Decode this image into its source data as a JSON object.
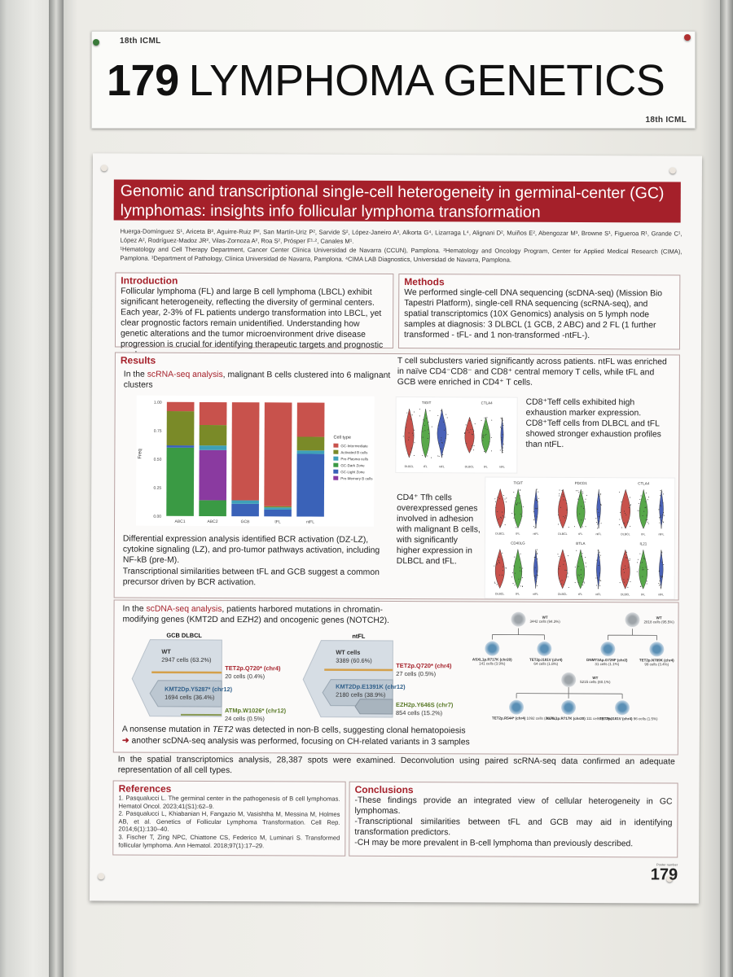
{
  "placard": {
    "brand_top": "18th ICML",
    "number": "179",
    "title": "LYMPHOMA GENETICS",
    "brand_bottom": "18th ICML"
  },
  "poster": {
    "title": "Genomic and transcriptional single-cell heterogeneity in germinal-center (GC) lymphomas: insights info follicular lymphoma transformation",
    "authors": "Huerga-Domínguez S¹, Ariceta B², Aguirre-Ruiz P², San Martín-Uriz P², Sarvide S², López-Janeiro A³, Alkorta G⁴, Lizarraga L⁴, Alignani D², Muiños E², Abengozar M³, Browne S¹, Figueroa R¹, Grande C¹, López A², Rodríguez-Madoz JR², Vilas-Zornoza A², Roa S², Prósper F¹·², Canales M¹.",
    "affiliations": "¹Hematology and Cell Therapy Department, Cancer Center Clínica Universidad de Navarra (CCUN), Pamplona. ²Hematology and Oncology Program, Center for Applied Medical Research (CIMA), Pamplona. ³Department of Pathology, Clínica Universidad de Navarra, Pamplona. ⁴CIMA LAB Diagnostics, Universidad de Navarra, Pamplona.",
    "introduction": {
      "heading": "Introduction",
      "text": "Follicular lymphoma (FL) and large B cell lymphoma (LBCL) exhibit significant heterogeneity, reflecting the diversity of germinal centers. Each year, 2-3% of FL patients undergo transformation into LBCL, yet clear prognostic factors remain unidentified. Understanding how genetic alterations and the tumor microenvironment drive disease progression is crucial for identifying therapeutic targets and prognostic markers."
    },
    "methods": {
      "heading": "Methods",
      "text": "We performed single-cell DNA sequencing (scDNA-seq) (Mission Bio Tapestri Platform), single-cell RNA sequencing (scRNA-seq), and spatial transcriptomics (10X Genomics) analysis on 5 lymph node samples at diagnosis: 3 DLBCL (1 GCB, 2 ABC) and 2 FL (1 further transformed - tFL- and 1 non-transformed -ntFL-)."
    },
    "results": {
      "heading": "Results",
      "scrna_pre": "In the ",
      "scrna_link": "scRNA-seq analysis",
      "scrna_post": ", malignant B cells clustered into 6 malignant clusters",
      "tcell_text": "T cell subclusters varied significantly across patients. ntFL was enriched in naïve CD4⁻CD8⁻ and CD8⁺ central memory T cells, while tFL and GCB were enriched in CD4⁺ T cells.",
      "cd8_text": "CD8⁺Teff cells exhibited high exhaustion marker expression. CD8⁺Teff cells from DLBCL and tFL showed stronger exhaustion profiles than ntFL.",
      "cd4_text": "CD4⁺ Tfh cells overexpressed genes involved in adhesion with malignant B cells, with significantly higher expression in DLBCL and tFL.",
      "de_text": "Differential expression analysis identified BCR activation (DZ-LZ), cytokine signaling (LZ), and pro-tumor pathways activation, including NF-kB (pre-M).",
      "sim_text": "Transcriptional similarities between tFL and GCB suggest a common precursor driven by BCR activation.",
      "violin_top_genes": [
        "TIGIT",
        "CTLA4"
      ],
      "violin_grid_genes": [
        "TIGIT",
        "PDCD1",
        "CTLA4",
        "CD40LG",
        "BTLA",
        "IL21"
      ],
      "violin_groups": [
        "DLBCL",
        "tFL",
        "ntFL"
      ],
      "violin_ylabel": "Expression Level",
      "scdna_pre": "In the ",
      "scdna_link": "scDNA-seq analysis",
      "scdna_post": ", patients harbored mutations in chromatin-modifying genes (KMT2D and EZH2) and oncogenic genes (NOTCH2).",
      "gcb_label": "GCB DLBCL",
      "gcb_wt": "WT",
      "gcb_wt_cells": "2947 cells (63.2%)",
      "gcb_tet2": "TET2p.Q720* (chr4)",
      "gcb_tet2_cells": "20 cells (0.4%)",
      "gcb_kmt2d": "KMT2Dp.Y5287* (chr12)",
      "gcb_kmt2d_cells": "1694 cells (36.4%)",
      "gcb_atm": "ATMp.W1026* (chr12)",
      "gcb_atm_cells": "24 cells (0.5%)",
      "ntfl_label": "ntFL",
      "ntfl_wt": "WT cells",
      "ntfl_wt_cells": "3389 (60.6%)",
      "ntfl_tet2": "TET2p.Q720* (chr4)",
      "ntfl_tet2_cells": "27 cells (0.5%)",
      "ntfl_kmt2d": "KMT2Dp.E1391K (chr12)",
      "ntfl_kmt2d_cells": "2180 cells (38.9%)",
      "ntfl_ezh2": "EZH2p.Y646S (chr7)",
      "ntfl_ezh2_cells": "854 cells (15.2%)",
      "tree": {
        "wt1": "WT",
        "wt1_cells": "3442 cells (94.3%)",
        "wt2": "WT",
        "wt2_cells": "2818 cells (95.5%)",
        "wt3": "WT",
        "wt3_cells": "5215 cells (80.1%)",
        "a1": "ASXL1p.R717K (chr20)",
        "a1_cells": "141 cells (3.9%)",
        "a2": "TET2p.I181V (chr4)",
        "a2_cells": "64 cells (1.8%)",
        "b1": "DNMT3Ap.G726F (chr2)",
        "b1_cells": "31 cells (1.1%)",
        "b2": "TET2p.N789K (chr4)",
        "b2_cells": "99 cells (3.4%)",
        "c1": "TET2p.R544* (chr4)",
        "c1_cells": "1092 cells (16.7%)",
        "c2": "ASXL1p.R717K (chr20)",
        "c2_cells": "111 cells (1.7%)",
        "c3": "TET2p.I181V (chr4)",
        "c3_cells": "96 cells (1.5%)"
      },
      "nonsense_pre": "A nonsense mutation in ",
      "nonsense_gene": "TET2",
      "nonsense_post": " was detected in non-B cells, suggesting clonal hematopoiesis",
      "ch_text": "another scDNA-seq analysis was performed, focusing on CH-related variants in 3 samples",
      "spatial_text": "In the spatial transcriptomics analysis, 28,387 spots were examined. Deconvolution using paired scRNA-seq data confirmed an adequate representation of all cell types."
    },
    "references": {
      "heading": "References",
      "items": [
        "1. Pasqualucci L. The germinal center in the pathogenesis of B cell lymphomas. Hematol Oncol. 2023;41(S1):62–9.",
        "2. Pasqualucci L, Khiabanian H, Fangazio M, Vasishtha M, Messina M, Holmes AB, et al. Genetics of Follicular Lymphoma Transformation. Cell Rep. 2014;6(1):130–40.",
        "3. Fischer T, Zing NPC, Chiattone CS, Federico M, Luminari S. Transformed follicular lymphoma. Ann Hematol. 2018;97(1):17–29."
      ]
    },
    "conclusions": {
      "heading": "Conclusions",
      "items": [
        "-These findings provide an integrated view of cellular heterogeneity in GC lymphomas.",
        "-Transcriptional similarities between tFL and GCB may aid in identifying transformation predictors.",
        "-CH may be more prevalent in B-cell lymphoma than previously described."
      ]
    },
    "poster_number_caption": "Poster number",
    "poster_number": "179"
  },
  "colors": {
    "title_band": "#a5202a",
    "accent": "#a5202a",
    "gc_intermediate": "#c8524c",
    "activated_b": "#7a8a28",
    "pre_plasma": "#3ea0b8",
    "gc_dark": "#3a9a44",
    "gc_light": "#3a62b8",
    "pre_memory": "#8a3aa0"
  },
  "chart_data": {
    "type": "bar",
    "stacked": true,
    "categories": [
      "ABC1",
      "ABC2",
      "GCB",
      "tFL",
      "ntFL"
    ],
    "ylabel": "Freq",
    "ylim": [
      0,
      1
    ],
    "yticks": [
      "0.00",
      "0.25",
      "0.50",
      "0.75",
      "1.00"
    ],
    "legend_title": "Cell type",
    "legend_position": "right",
    "series": [
      {
        "name": "GC-Dark Zone",
        "values": [
          0.6,
          0.14,
          0.0,
          0.0,
          0.0
        ]
      },
      {
        "name": "GC-Light Zone",
        "values": [
          0.02,
          0.0,
          0.11,
          0.06,
          0.55
        ]
      },
      {
        "name": "Pre-Memory B cells",
        "values": [
          0.0,
          0.44,
          0.0,
          0.0,
          0.0
        ]
      },
      {
        "name": "Pre-Plasma cells",
        "values": [
          0.0,
          0.04,
          0.03,
          0.02,
          0.03
        ]
      },
      {
        "name": "Activated B cells",
        "values": [
          0.3,
          0.18,
          0.0,
          0.01,
          0.12
        ]
      },
      {
        "name": "GC-Intermediate",
        "values": [
          0.08,
          0.2,
          0.86,
          0.91,
          0.3
        ]
      }
    ]
  }
}
